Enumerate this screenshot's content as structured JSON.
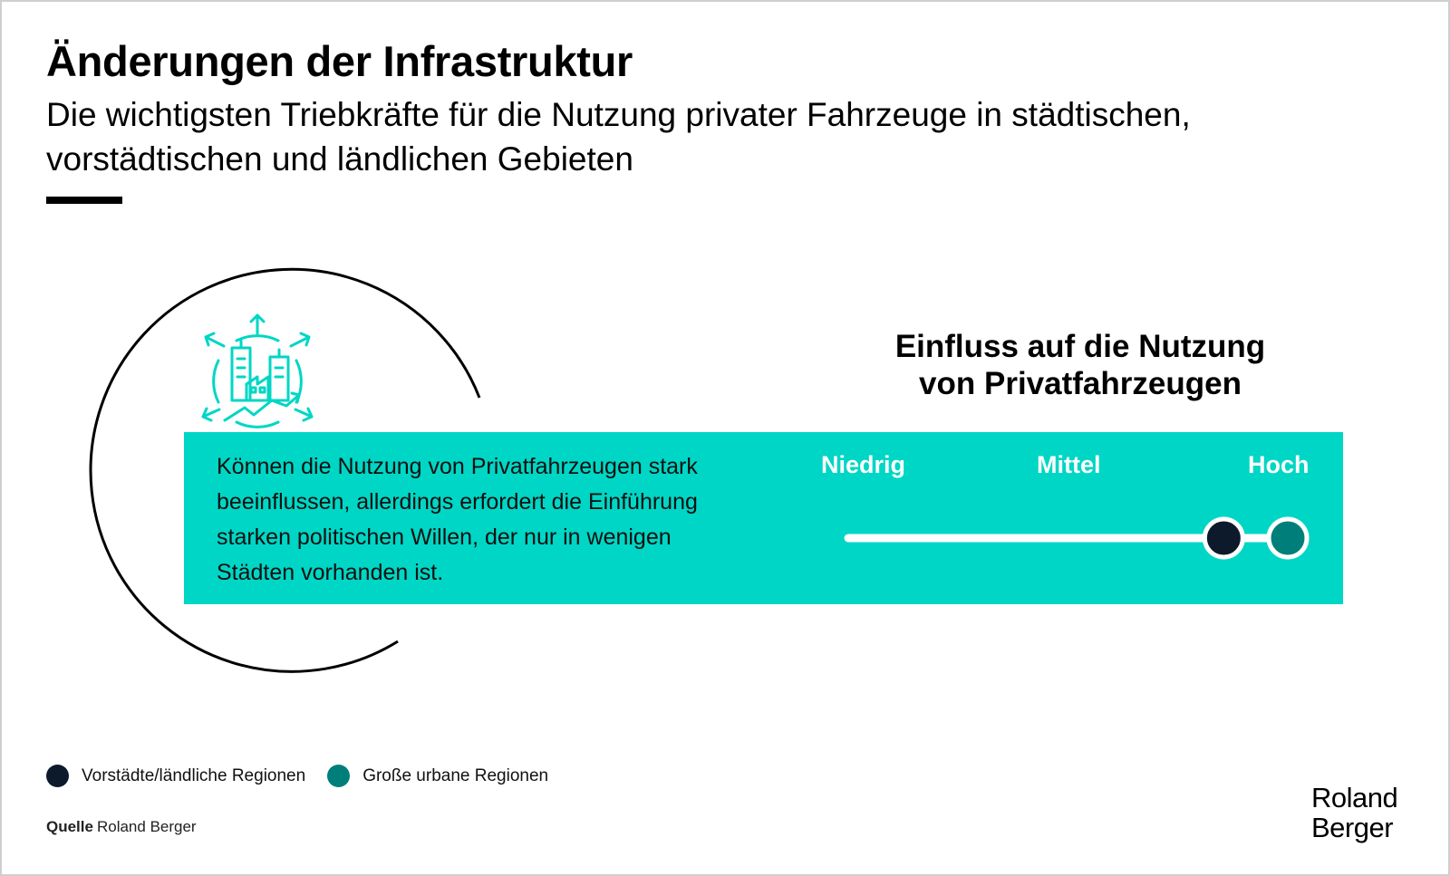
{
  "header": {
    "title": "Änderungen der Infrastruktur",
    "subtitle": "Die wichtigsten Triebkräfte für die Nutzung privater Fahrzeuge in städtischen, vorstädtischen und ländlichen Gebieten"
  },
  "impact": {
    "title_line1": "Einfluss auf die Nutzung",
    "title_line2": "von Privatfahrzeugen",
    "scale_labels": [
      "Niedrig",
      "Mittel",
      "Hoch"
    ]
  },
  "driver": {
    "icon": "urban-growth-icon",
    "description": "Können die Nutzung von Privatfahrzeugen stark beeinflussen, allerdings erfordert die Einführung starken politischen Willen, der nur in wenigen Städten vorhanden ist."
  },
  "chart_data": {
    "type": "scatter",
    "categories": [
      "Niedrig",
      "Mittel",
      "Hoch"
    ],
    "series": [
      {
        "name": "Vorstädte/ländliche Regionen",
        "value": 0.85,
        "color": "#0c1a2b"
      },
      {
        "name": "Große urbane Regionen",
        "value": 1.0,
        "color": "#007f7a"
      }
    ],
    "xlim": [
      0,
      1
    ]
  },
  "legend": {
    "items": [
      {
        "label": "Vorstädte/ländliche Regionen",
        "color": "#0c1a2b"
      },
      {
        "label": "Große urbane Regionen",
        "color": "#007f7a"
      }
    ]
  },
  "source": {
    "label": "Quelle",
    "text": "Roland Berger"
  },
  "brand": {
    "line1": "Roland",
    "line2": "Berger"
  },
  "colors": {
    "accent": "#00d6c5",
    "dark_dot": "#0c1a2b",
    "teal_dot": "#007f7a"
  }
}
